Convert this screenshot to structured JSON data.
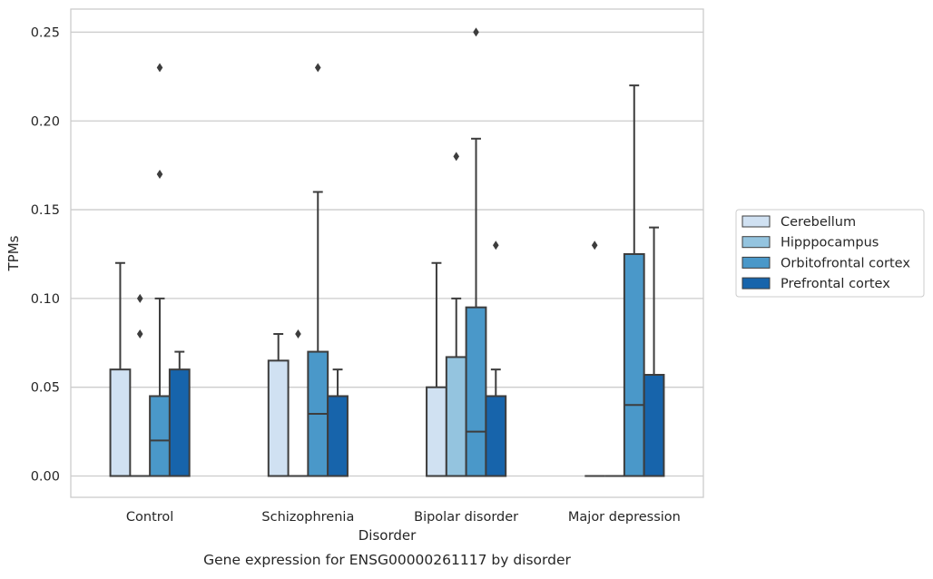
{
  "chart_data": {
    "type": "boxplot",
    "title": "",
    "caption": "Gene expression for ENSG00000261117 by disorder",
    "xlabel": "Disorder",
    "ylabel": "TPMs",
    "ylim": [
      -0.012,
      0.263
    ],
    "yticks": [
      "0.00",
      "0.05",
      "0.10",
      "0.15",
      "0.20",
      "0.25"
    ],
    "ytick_values": [
      0,
      0.05,
      0.1,
      0.15,
      0.2,
      0.25
    ],
    "grid": "horizontal",
    "legend_position": "right",
    "categories": [
      "Control",
      "Schizophrenia",
      "Bipolar disorder",
      "Major depression"
    ],
    "series": [
      {
        "name": "Cerebellum",
        "color": "#d0e1f2",
        "boxes": [
          {
            "q1": 0,
            "median": 0,
            "q3": 0.06,
            "whisker_low": 0,
            "whisker_high": 0.12,
            "outliers": []
          },
          {
            "q1": 0,
            "median": 0,
            "q3": 0.065,
            "whisker_low": 0,
            "whisker_high": 0.08,
            "outliers": []
          },
          {
            "q1": 0,
            "median": 0,
            "q3": 0.05,
            "whisker_low": 0,
            "whisker_high": 0.12,
            "outliers": []
          },
          {
            "q1": 0,
            "median": 0,
            "q3": 0,
            "whisker_low": 0,
            "whisker_high": 0,
            "outliers": [
              0.13
            ]
          }
        ]
      },
      {
        "name": "Hipppocampus",
        "color": "#94c4df",
        "boxes": [
          {
            "q1": 0,
            "median": 0,
            "q3": 0,
            "whisker_low": 0,
            "whisker_high": 0,
            "outliers": [
              0.08,
              0.1
            ]
          },
          {
            "q1": 0,
            "median": 0,
            "q3": 0,
            "whisker_low": 0,
            "whisker_high": 0,
            "outliers": [
              0.08
            ]
          },
          {
            "q1": 0,
            "median": 0,
            "q3": 0.067,
            "whisker_low": 0,
            "whisker_high": 0.1,
            "outliers": [
              0.18
            ]
          },
          {
            "q1": 0,
            "median": 0,
            "q3": 0,
            "whisker_low": 0,
            "whisker_high": 0,
            "outliers": []
          }
        ]
      },
      {
        "name": "Orbitofrontal cortex",
        "color": "#4a98c9",
        "boxes": [
          {
            "q1": 0,
            "median": 0.02,
            "q3": 0.045,
            "whisker_low": 0,
            "whisker_high": 0.1,
            "outliers": [
              0.17,
              0.23
            ]
          },
          {
            "q1": 0,
            "median": 0.035,
            "q3": 0.07,
            "whisker_low": 0,
            "whisker_high": 0.16,
            "outliers": [
              0.23
            ]
          },
          {
            "q1": 0,
            "median": 0.025,
            "q3": 0.095,
            "whisker_low": 0,
            "whisker_high": 0.19,
            "outliers": [
              0.25
            ]
          },
          {
            "q1": 0,
            "median": 0.04,
            "q3": 0.125,
            "whisker_low": 0,
            "whisker_high": 0.22,
            "outliers": []
          }
        ]
      },
      {
        "name": "Prefrontal cortex",
        "color": "#1764ab",
        "boxes": [
          {
            "q1": 0,
            "median": 0,
            "q3": 0.06,
            "whisker_low": 0,
            "whisker_high": 0.07,
            "outliers": []
          },
          {
            "q1": 0,
            "median": 0,
            "q3": 0.045,
            "whisker_low": 0,
            "whisker_high": 0.06,
            "outliers": []
          },
          {
            "q1": 0,
            "median": 0,
            "q3": 0.045,
            "whisker_low": 0,
            "whisker_high": 0.06,
            "outliers": [
              0.13
            ]
          },
          {
            "q1": 0,
            "median": 0,
            "q3": 0.057,
            "whisker_low": 0,
            "whisker_high": 0.14,
            "outliers": []
          }
        ]
      }
    ]
  }
}
